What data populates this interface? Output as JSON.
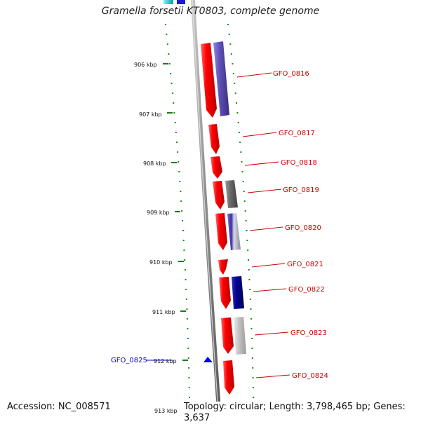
{
  "title": "Gramella forsetii KT0803, complete genome",
  "ticks": [
    {
      "label": "906 kbp"
    },
    {
      "label": "907 kbp"
    },
    {
      "label": "908 kbp"
    },
    {
      "label": "909 kbp"
    },
    {
      "label": "910 kbp"
    },
    {
      "label": "911 kbp"
    },
    {
      "label": "912 kbp"
    },
    {
      "label": "913 kbp"
    }
  ],
  "genes_right": [
    {
      "label": "GFO_0816"
    },
    {
      "label": "GFO_0817"
    },
    {
      "label": "GFO_0818"
    },
    {
      "label": "GFO_0819"
    },
    {
      "label": "GFO_0820"
    },
    {
      "label": "GFO_0821"
    },
    {
      "label": "GFO_0822"
    },
    {
      "label": "GFO_0823"
    },
    {
      "label": "GFO_0824"
    }
  ],
  "gene_left": {
    "label": "GFO_0825"
  },
  "footer": {
    "accession": "Accession: NC_008571",
    "meta": "Topology: circular; Length: 3,798,465 bp; Genes: 3,637"
  },
  "colors": {
    "gene_red": "#ff0000",
    "label_red": "#cc0000",
    "label_blue": "#0000cc",
    "track_green": "#228b22",
    "purple": "#6a5acd",
    "navy": "#00008b",
    "gray": "#6e6e6e",
    "light_gray": "#c8c8c8",
    "blue_arrow": "#0000ff"
  }
}
